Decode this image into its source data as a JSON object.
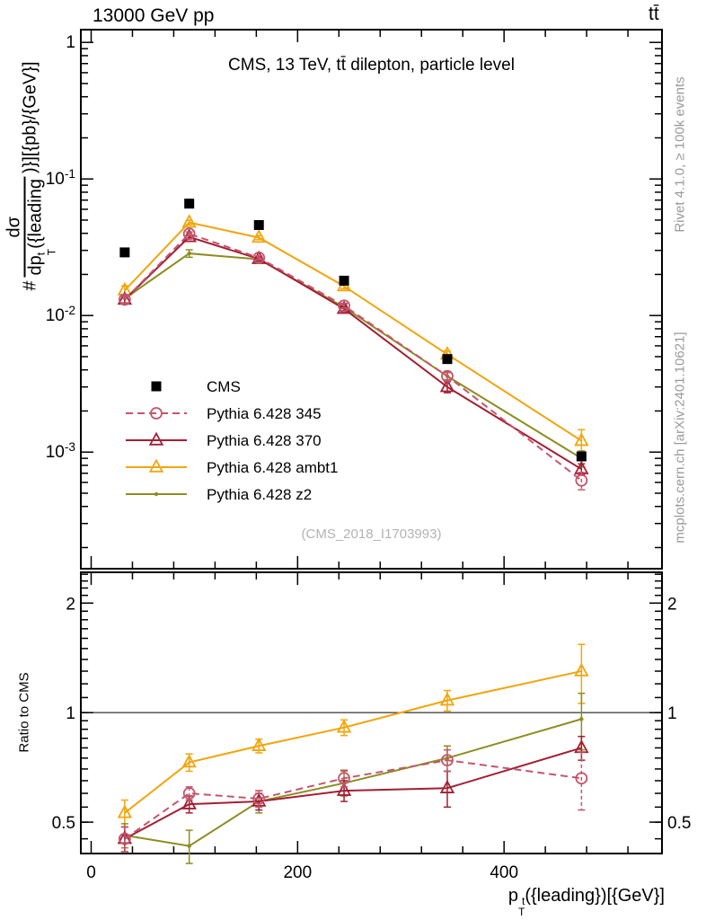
{
  "header": {
    "left": "13000 GeV pp",
    "right": "tt̄"
  },
  "main_panel": {
    "title": "CMS, 13 TeV, tt̄ dilepton, particle level",
    "watermark": "(CMS_2018_I1703993)"
  },
  "sidenotes": {
    "top": "Rivet 4.1.0, ≥ 100k events",
    "bottom": "mcplots.cern.ch [arXiv:2401.10621]"
  },
  "axis_labels": {
    "y_prefix": "#",
    "y_frac_num": "dσ",
    "y_frac_den_base": "dp",
    "y_frac_den_sup": "t",
    "y_frac_den_sub": "T",
    "y_frac_den_rest": "({leading",
    "y_suffix": ")}][{pb}/{GeV}]",
    "ratio_y": "Ratio to CMS",
    "x_base": "p",
    "x_sup": "t",
    "x_sub": "T",
    "x_rest": "({leading})[{GeV}]"
  },
  "legend": [
    {
      "label": "CMS",
      "series": "cms"
    },
    {
      "label": "Pythia 6.428 345",
      "series": "py345"
    },
    {
      "label": "Pythia 6.428 370",
      "series": "py370"
    },
    {
      "label": "Pythia 6.428 ambt1",
      "series": "pyambt1"
    },
    {
      "label": "Pythia 6.428 z2",
      "series": "pyz2"
    }
  ],
  "chart_data": {
    "type": "line",
    "title": "CMS, 13 TeV, ttbar dilepton, particle level",
    "xlabel": "p_T^t({leading})[{GeV}]",
    "ylabel": "# dσ/dp_T^t({leading})}][{pb}/{GeV}]",
    "x": [
      32.5,
      95,
      162.5,
      245,
      345,
      475
    ],
    "xlim": [
      -10,
      553
    ],
    "xticks": {
      "major": [
        0,
        200,
        400
      ],
      "labels": [
        "0",
        "200",
        "400"
      ],
      "minor_step": 40
    },
    "main": {
      "yscale": "log",
      "ylim": [
        0.00014,
        1.24
      ],
      "yticks": [
        {
          "value": 1,
          "label": "1"
        },
        {
          "value": 0.1,
          "label": "10^-1"
        },
        {
          "value": 0.01,
          "label": "10^-2"
        },
        {
          "value": 0.001,
          "label": "10^-3"
        }
      ]
    },
    "ratio": {
      "yscale": "log",
      "ylim": [
        0.41,
        2.43
      ],
      "baseline": 1,
      "ylabel": "Ratio to CMS",
      "yticks": [
        {
          "value": 2,
          "label": "2"
        },
        {
          "value": 1,
          "label": "1"
        },
        {
          "value": 0.5,
          "label": "0.5"
        }
      ]
    },
    "series": [
      {
        "id": "cms",
        "name": "CMS",
        "color": "#000000",
        "marker": "filled-square",
        "line": "none",
        "values": [
          0.029,
          0.066,
          0.046,
          0.018,
          0.0048,
          0.00093
        ],
        "errors": [
          0,
          0,
          0,
          0,
          0,
          0
        ],
        "ratio": null,
        "ratio_errors": null
      },
      {
        "id": "pyambt1",
        "name": "Pythia 6.428 ambt1",
        "color": "#f2a50c",
        "marker": "open-triangle",
        "line": "solid",
        "values": [
          0.0153,
          0.048,
          0.0372,
          0.0164,
          0.0052,
          0.00121
        ],
        "errors": [
          0.0012,
          0.0018,
          0.0013,
          0.0007,
          0.0003,
          0.00025
        ],
        "ratio": [
          0.53,
          0.73,
          0.81,
          0.91,
          1.08,
          1.3
        ],
        "ratio_errors": [
          0.045,
          0.04,
          0.035,
          0.045,
          0.07,
          0.24
        ]
      },
      {
        "id": "pyz2",
        "name": "Pythia 6.428 z2",
        "color": "#8d8d22",
        "marker": "small-dot",
        "line": "solid",
        "values": [
          0.0133,
          0.0285,
          0.0258,
          0.0115,
          0.0036,
          0.0009
        ],
        "errors": [
          0.0009,
          0.0018,
          0.0012,
          0.0006,
          0.00025,
          0.00012
        ],
        "ratio": [
          0.46,
          0.43,
          0.57,
          0.64,
          0.75,
          0.96
        ],
        "ratio_errors": [
          0.035,
          0.045,
          0.04,
          0.05,
          0.06,
          0.17
        ]
      },
      {
        "id": "py370",
        "name": "Pythia 6.428 370",
        "color": "#a31f34",
        "marker": "open-triangle",
        "line": "solid",
        "values": [
          0.0131,
          0.0376,
          0.026,
          0.0112,
          0.003,
          0.00075
        ],
        "errors": [
          0.0008,
          0.0012,
          0.0009,
          0.0005,
          0.00028,
          7e-05
        ],
        "ratio": [
          0.45,
          0.56,
          0.57,
          0.61,
          0.62,
          0.8
        ],
        "ratio_errors": [
          0.035,
          0.03,
          0.03,
          0.04,
          0.07,
          0.06
        ]
      },
      {
        "id": "py345",
        "name": "Pythia 6.428 345",
        "color": "#c4556e",
        "marker": "open-circle",
        "line": "dashed",
        "values": [
          0.0131,
          0.0397,
          0.0265,
          0.0118,
          0.0036,
          0.00062
        ],
        "errors": [
          0.0008,
          0.0012,
          0.0009,
          0.0005,
          0.00022,
          9e-05
        ],
        "ratio": [
          0.45,
          0.6,
          0.58,
          0.66,
          0.74,
          0.66
        ],
        "ratio_errors": [
          0.035,
          0.025,
          0.03,
          0.035,
          0.05,
          0.12
        ]
      }
    ],
    "legend_position": "middle-left",
    "grid": false
  }
}
